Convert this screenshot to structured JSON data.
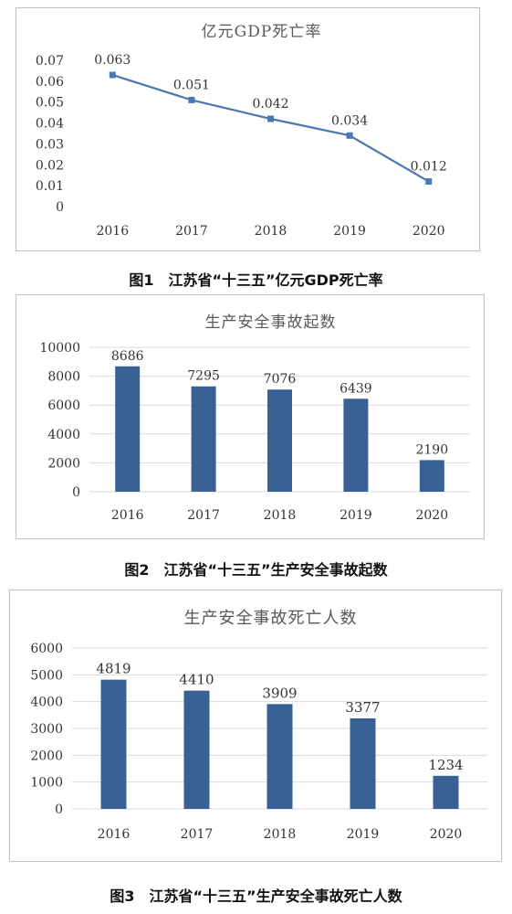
{
  "colors": {
    "series": "#4a78b0",
    "bar": "#3a6193",
    "grid": "#d9d9d9",
    "axis_text": "#333333",
    "title_text": "#595959",
    "frame": "#bfbfbf"
  },
  "chart_data": [
    {
      "type": "line",
      "title": "亿元GDP死亡率",
      "caption": "图1　江苏省“十三五”亿元GDP死亡率",
      "categories": [
        "2016",
        "2017",
        "2018",
        "2019",
        "2020"
      ],
      "values": [
        0.063,
        0.051,
        0.042,
        0.034,
        0.012
      ],
      "data_labels": [
        "0.063",
        "0.051",
        "0.042",
        "0.034",
        "0.012"
      ],
      "yticks": [
        "0",
        "0.01",
        "0.02",
        "0.03",
        "0.04",
        "0.05",
        "0.06",
        "0.07"
      ],
      "ylim": [
        0,
        0.07
      ],
      "grid": false,
      "xlabel": "",
      "ylabel": ""
    },
    {
      "type": "bar",
      "title": "生产安全事故起数",
      "caption": "图2　江苏省“十三五”生产安全事故起数",
      "categories": [
        "2016",
        "2017",
        "2018",
        "2019",
        "2020"
      ],
      "values": [
        8686,
        7295,
        7076,
        6439,
        2190
      ],
      "data_labels": [
        "8686",
        "7295",
        "7076",
        "6439",
        "2190"
      ],
      "yticks": [
        "0",
        "2000",
        "4000",
        "6000",
        "8000",
        "10000"
      ],
      "ylim": [
        0,
        10000
      ],
      "grid": true,
      "xlabel": "",
      "ylabel": ""
    },
    {
      "type": "bar",
      "title": "生产安全事故死亡人数",
      "caption": "图3　江苏省“十三五”生产安全事故死亡人数",
      "categories": [
        "2016",
        "2017",
        "2018",
        "2019",
        "2020"
      ],
      "values": [
        4819,
        4410,
        3909,
        3377,
        1234
      ],
      "data_labels": [
        "4819",
        "4410",
        "3909",
        "3377",
        "1234"
      ],
      "yticks": [
        "0",
        "1000",
        "2000",
        "3000",
        "4000",
        "5000",
        "6000"
      ],
      "ylim": [
        0,
        6000
      ],
      "grid": true,
      "xlabel": "",
      "ylabel": ""
    }
  ]
}
